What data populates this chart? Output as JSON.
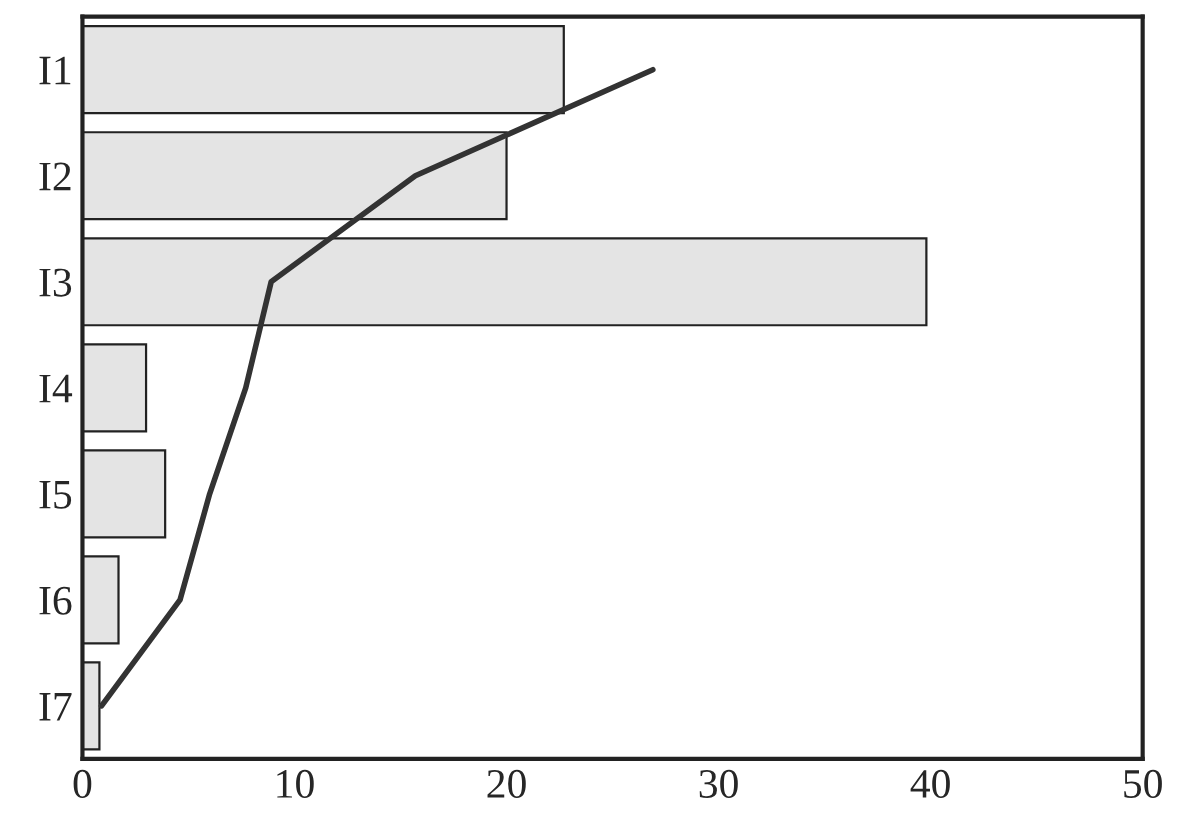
{
  "chart_data": {
    "type": "bar",
    "orientation": "horizontal",
    "categories": [
      "I1",
      "I2",
      "I3",
      "I4",
      "I5",
      "I6",
      "I7"
    ],
    "series": [
      {
        "color": "#e4e4e4",
        "values": [
          22.7,
          20.0,
          39.8,
          3.0,
          3.9,
          1.7,
          0.8
        ]
      },
      {
        "type": "line",
        "color": "#333333",
        "values": [
          26.9,
          15.7,
          8.9,
          7.7,
          6.0,
          4.6,
          0.9
        ]
      }
    ],
    "xlim": [
      0,
      50
    ],
    "xticks": [
      0,
      10,
      20,
      30,
      40,
      50
    ],
    "grid": false,
    "legend": false,
    "marker": "none",
    "line_style": "solid"
  }
}
